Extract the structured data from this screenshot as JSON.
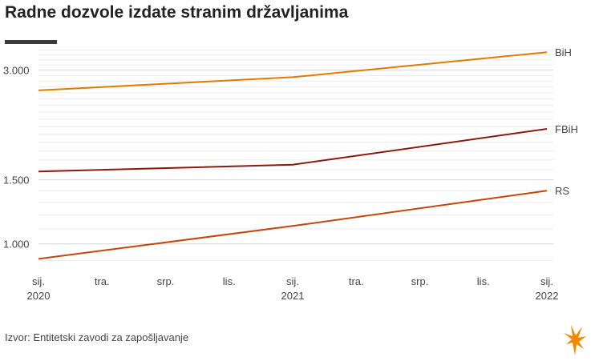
{
  "title": "Radne dozvole izdate stranim državljanima",
  "source": "Izvor: Entitetski zavodi za zapošljavanje",
  "colors": {
    "accent": "#e07b00",
    "grid": "#e6e6e6",
    "text": "#444444"
  },
  "logo_icon": "rfe-rl-flame-icon",
  "chart_data": {
    "type": "line",
    "title": "Radne dozvole izdate stranim državljanima",
    "xlabel": "",
    "ylabel": "",
    "yscale": "log",
    "ylim": [
      880,
      3450
    ],
    "y_ticks": [
      {
        "value": 1000,
        "label": "1.000"
      },
      {
        "value": 1500,
        "label": "1.500"
      },
      {
        "value": 3000,
        "label": "3.000"
      }
    ],
    "x_ticks": [
      {
        "line1": "sij.",
        "line2": "2020"
      },
      {
        "line1": "tra.",
        "line2": ""
      },
      {
        "line1": "srp.",
        "line2": ""
      },
      {
        "line1": "lis.",
        "line2": ""
      },
      {
        "line1": "sij.",
        "line2": "2021"
      },
      {
        "line1": "tra.",
        "line2": ""
      },
      {
        "line1": "srp.",
        "line2": ""
      },
      {
        "line1": "lis.",
        "line2": ""
      },
      {
        "line1": "sij.",
        "line2": "2022"
      }
    ],
    "x": [
      "2020-01",
      "2021-01",
      "2022-01"
    ],
    "grid": true,
    "series": [
      {
        "name": "BiH",
        "color": "#e07b00",
        "values": [
          2640,
          2870,
          3360
        ]
      },
      {
        "name": "FBiH",
        "color": "#8b1a0e",
        "values": [
          1580,
          1650,
          2070
        ]
      },
      {
        "name": "RS",
        "color": "#c4470a",
        "values": [
          910,
          1120,
          1400
        ]
      }
    ]
  }
}
